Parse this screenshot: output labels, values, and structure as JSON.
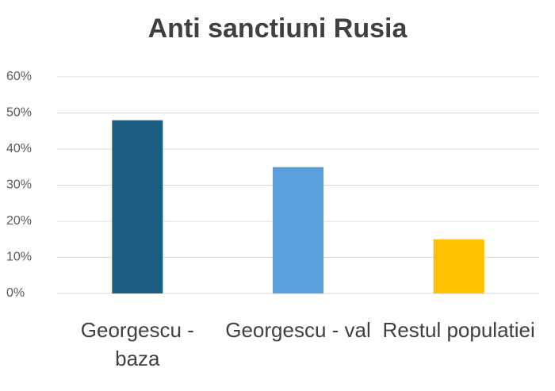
{
  "chart_data": {
    "type": "bar",
    "title": "Anti sanctiuni Rusia",
    "categories": [
      "Georgescu - baza",
      "Georgescu - val",
      "Restul populatiei"
    ],
    "values": [
      48,
      35,
      15
    ],
    "colors": [
      "#1b5e82",
      "#5aa0dc",
      "#ffc000"
    ],
    "ylim": [
      0,
      60
    ],
    "yticks": [
      {
        "value": 0,
        "label": "0%"
      },
      {
        "value": 10,
        "label": "10%"
      },
      {
        "value": 20,
        "label": "20%"
      },
      {
        "value": 30,
        "label": "30%"
      },
      {
        "value": 40,
        "label": "40%"
      },
      {
        "value": 50,
        "label": "50%"
      },
      {
        "value": 60,
        "label": "60%"
      }
    ],
    "grid": true
  }
}
